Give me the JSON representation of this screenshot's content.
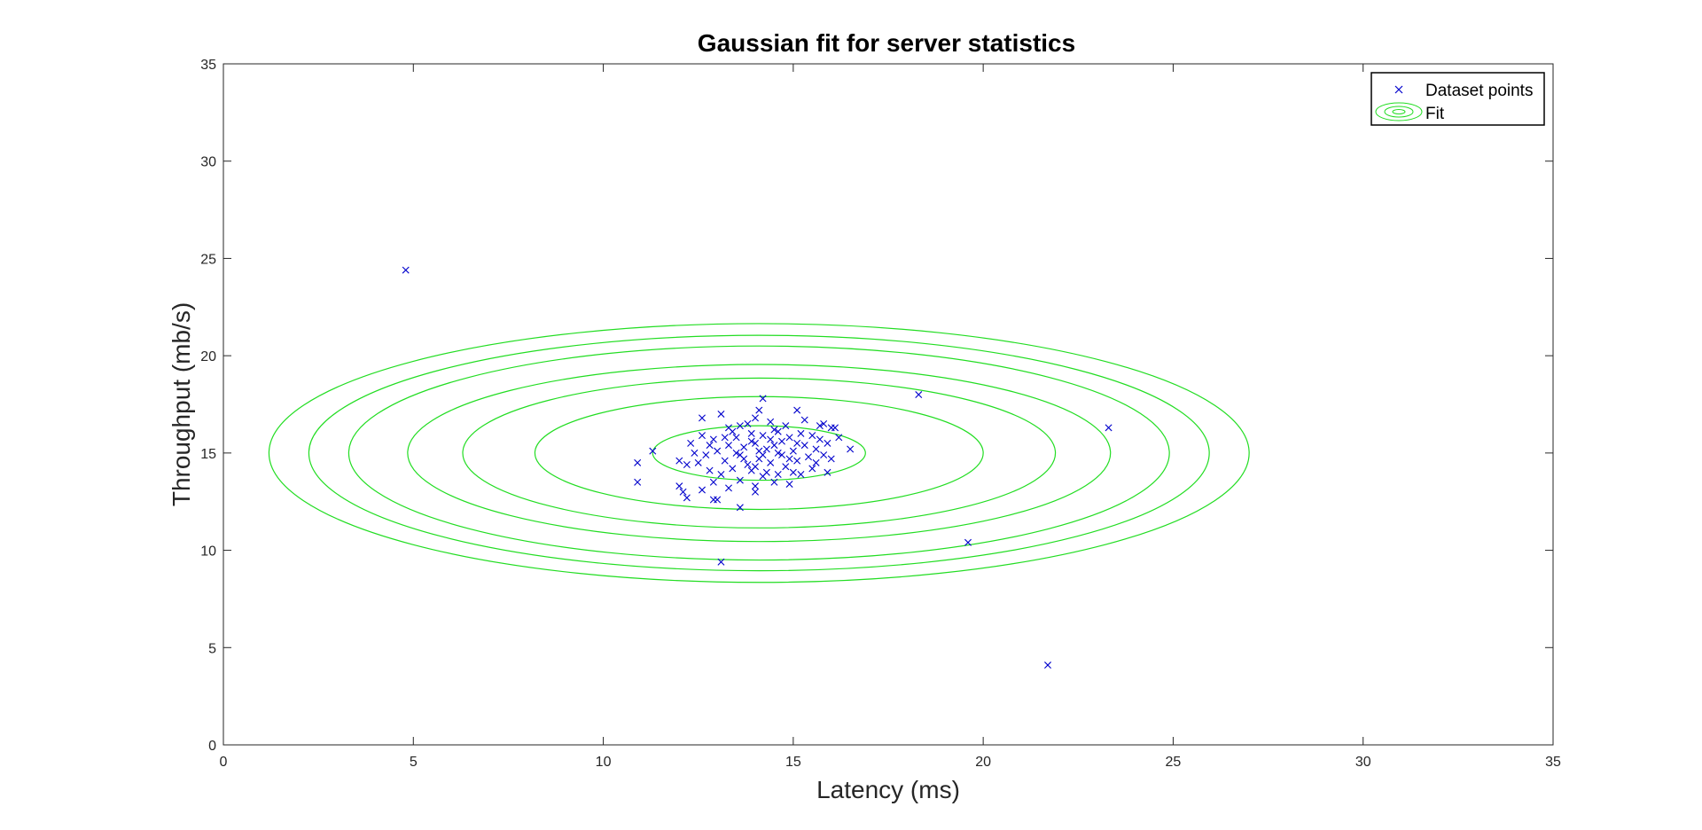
{
  "chart_data": {
    "type": "scatter",
    "title": "Gaussian fit for server statistics",
    "xlabel": "Latency (ms)",
    "ylabel": "Throughput (mb/s)",
    "xlim": [
      0,
      35
    ],
    "ylim": [
      0,
      35
    ],
    "xticks": [
      0,
      5,
      10,
      15,
      20,
      25,
      30,
      35
    ],
    "yticks": [
      0,
      5,
      10,
      15,
      20,
      25,
      30,
      35
    ],
    "grid": false,
    "legend": {
      "position": "top-right",
      "entries": [
        {
          "label": "Dataset points",
          "marker": "x",
          "color": "#0000cc"
        },
        {
          "label": "Fit",
          "marker": "contour",
          "color": "#22dd22"
        }
      ]
    },
    "series": [
      {
        "name": "Dataset points",
        "marker": "x",
        "color": "#0000cc",
        "points": [
          [
            4.8,
            24.4
          ],
          [
            18.3,
            18.0
          ],
          [
            23.3,
            16.3
          ],
          [
            19.6,
            10.4
          ],
          [
            21.7,
            4.1
          ],
          [
            13.1,
            9.4
          ],
          [
            10.9,
            14.5
          ],
          [
            10.9,
            13.5
          ],
          [
            11.3,
            15.1
          ],
          [
            12.2,
            12.7
          ],
          [
            13.6,
            12.2
          ],
          [
            14.2,
            17.8
          ],
          [
            12.9,
            12.6
          ],
          [
            12.0,
            13.3
          ],
          [
            16.5,
            15.2
          ],
          [
            16.1,
            16.3
          ],
          [
            16.0,
            14.7
          ],
          [
            16.2,
            15.8
          ],
          [
            12.6,
            16.8
          ],
          [
            15.1,
            17.2
          ],
          [
            14.0,
            13.0
          ],
          [
            12.6,
            13.1
          ],
          [
            14.9,
            13.4
          ],
          [
            12.1,
            13.0
          ],
          [
            13.0,
            12.6
          ],
          [
            13.1,
            17.0
          ],
          [
            14.0,
            16.8
          ],
          [
            14.1,
            17.2
          ],
          [
            15.8,
            16.5
          ],
          [
            15.9,
            14.0
          ],
          [
            12.3,
            15.5
          ],
          [
            12.4,
            15.0
          ],
          [
            12.7,
            14.9
          ],
          [
            12.8,
            14.1
          ],
          [
            12.9,
            15.7
          ],
          [
            13.0,
            15.1
          ],
          [
            13.2,
            14.6
          ],
          [
            13.3,
            15.4
          ],
          [
            13.4,
            14.2
          ],
          [
            13.5,
            15.8
          ],
          [
            13.6,
            14.9
          ],
          [
            13.7,
            15.3
          ],
          [
            13.8,
            14.4
          ],
          [
            13.9,
            16.0
          ],
          [
            14.0,
            15.5
          ],
          [
            14.1,
            14.7
          ],
          [
            14.2,
            15.9
          ],
          [
            14.3,
            15.2
          ],
          [
            14.4,
            14.5
          ],
          [
            14.5,
            16.2
          ],
          [
            14.6,
            15.0
          ],
          [
            14.7,
            15.6
          ],
          [
            14.8,
            14.3
          ],
          [
            14.9,
            15.8
          ],
          [
            15.0,
            15.1
          ],
          [
            15.1,
            14.6
          ],
          [
            15.2,
            16.0
          ],
          [
            15.3,
            15.4
          ],
          [
            15.4,
            14.8
          ],
          [
            15.5,
            15.9
          ],
          [
            15.6,
            15.2
          ],
          [
            15.7,
            16.4
          ],
          [
            15.8,
            14.9
          ],
          [
            13.1,
            13.9
          ],
          [
            13.3,
            16.3
          ],
          [
            13.6,
            13.6
          ],
          [
            13.8,
            16.5
          ],
          [
            14.2,
            13.8
          ],
          [
            14.4,
            16.6
          ],
          [
            14.6,
            13.9
          ],
          [
            14.8,
            16.4
          ],
          [
            15.0,
            14.0
          ],
          [
            15.3,
            16.7
          ],
          [
            15.5,
            14.2
          ],
          [
            12.5,
            14.5
          ],
          [
            12.8,
            15.4
          ],
          [
            13.9,
            14.1
          ],
          [
            14.1,
            15.1
          ],
          [
            14.3,
            14.0
          ],
          [
            14.7,
            14.9
          ],
          [
            13.5,
            15.0
          ],
          [
            13.7,
            14.7
          ],
          [
            14.0,
            14.3
          ],
          [
            14.5,
            15.4
          ],
          [
            14.9,
            14.7
          ],
          [
            15.1,
            15.5
          ],
          [
            15.6,
            14.5
          ],
          [
            13.2,
            15.8
          ],
          [
            13.4,
            16.1
          ],
          [
            12.6,
            15.9
          ],
          [
            12.2,
            14.4
          ],
          [
            12.0,
            14.6
          ],
          [
            15.9,
            15.5
          ],
          [
            16.0,
            16.3
          ],
          [
            14.2,
            14.9
          ],
          [
            13.9,
            15.6
          ],
          [
            14.4,
            15.7
          ],
          [
            14.6,
            16.1
          ],
          [
            13.6,
            16.4
          ],
          [
            12.9,
            13.5
          ],
          [
            14.0,
            13.3
          ],
          [
            14.5,
            13.5
          ],
          [
            15.2,
            13.9
          ],
          [
            13.3,
            13.2
          ],
          [
            15.7,
            15.7
          ]
        ]
      }
    ],
    "fit": {
      "name": "Fit",
      "type": "contour",
      "color": "#22dd22",
      "center": [
        14.1,
        15.0
      ],
      "level_radii": [
        [
          2.8,
          1.4
        ],
        [
          5.9,
          2.9
        ],
        [
          7.8,
          3.85
        ],
        [
          9.25,
          4.55
        ],
        [
          10.8,
          5.5
        ],
        [
          11.85,
          6.05
        ],
        [
          12.9,
          6.65
        ]
      ]
    }
  }
}
